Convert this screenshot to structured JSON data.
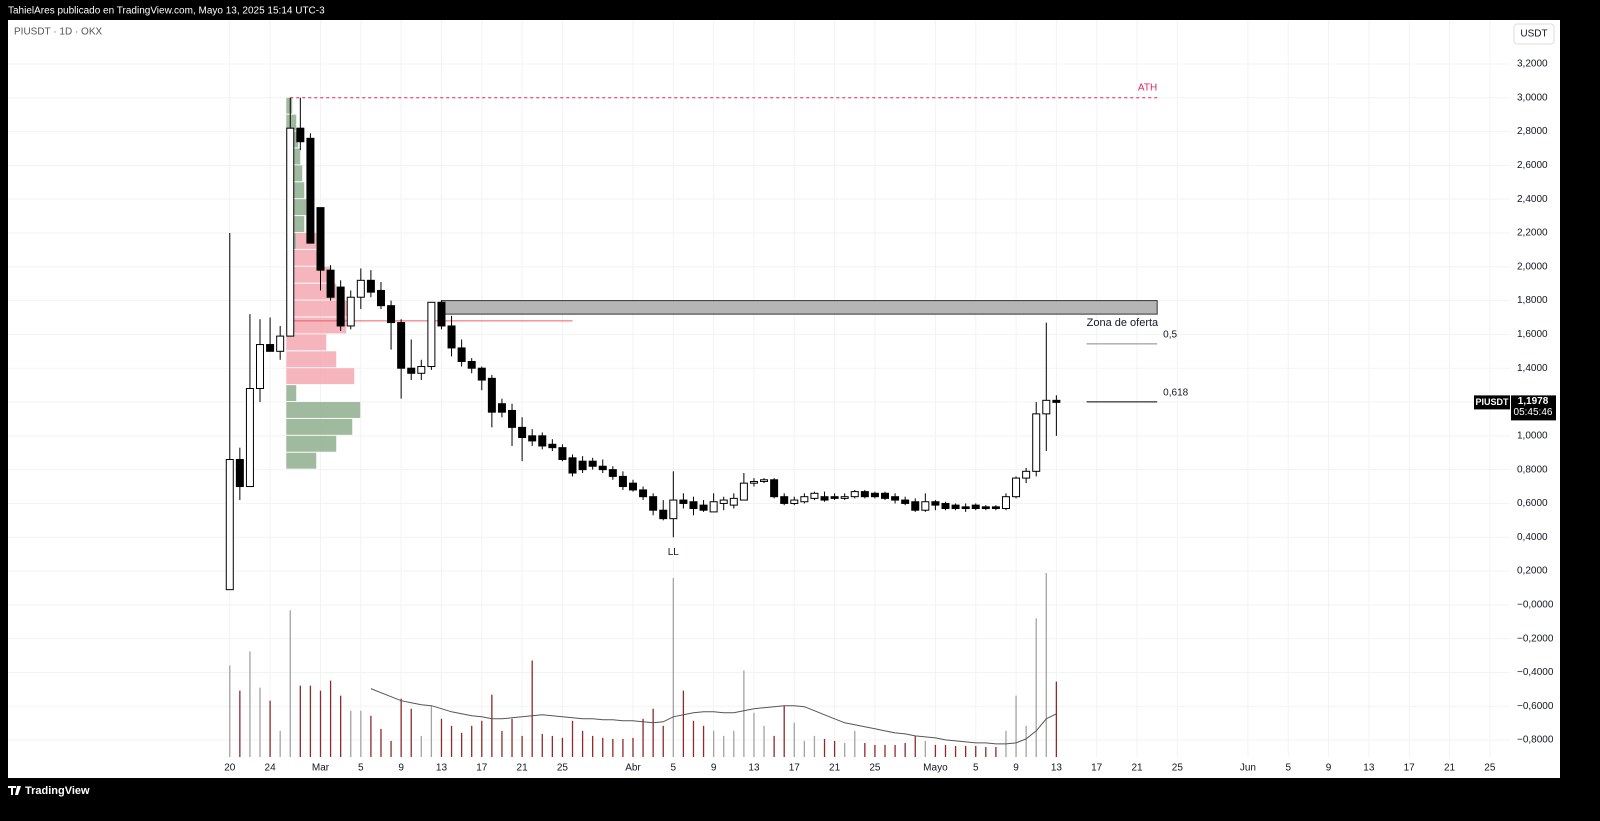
{
  "header": "TahielAres publicado en TradingView.com, Mayo 13, 2025 15:14 UTC-3",
  "footer": "TradingView",
  "chart_data": {
    "type": "candlestick",
    "title": "PIUSDT · 1D · OKX",
    "currency": "USDT",
    "x": [
      "2025-02-20",
      "2025-02-21",
      "2025-02-22",
      "2025-02-23",
      "2025-02-24",
      "2025-02-25",
      "2025-02-26",
      "2025-02-27",
      "2025-02-28",
      "2025-03-01",
      "2025-03-02",
      "2025-03-03",
      "2025-03-04",
      "2025-03-05",
      "2025-03-06",
      "2025-03-07",
      "2025-03-08",
      "2025-03-09",
      "2025-03-10",
      "2025-03-11",
      "2025-03-12",
      "2025-03-13",
      "2025-03-14",
      "2025-03-15",
      "2025-03-16",
      "2025-03-17",
      "2025-03-18",
      "2025-03-19",
      "2025-03-20",
      "2025-03-21",
      "2025-03-22",
      "2025-03-23",
      "2025-03-24",
      "2025-03-25",
      "2025-03-26",
      "2025-03-27",
      "2025-03-28",
      "2025-03-29",
      "2025-03-30",
      "2025-03-31",
      "2025-04-01",
      "2025-04-02",
      "2025-04-03",
      "2025-04-04",
      "2025-04-05",
      "2025-04-06",
      "2025-04-07",
      "2025-04-08",
      "2025-04-09",
      "2025-04-10",
      "2025-04-11",
      "2025-04-12",
      "2025-04-13",
      "2025-04-14",
      "2025-04-15",
      "2025-04-16",
      "2025-04-17",
      "2025-04-18",
      "2025-04-19",
      "2025-04-20",
      "2025-04-21",
      "2025-04-22",
      "2025-04-23",
      "2025-04-24",
      "2025-04-25",
      "2025-04-26",
      "2025-04-27",
      "2025-04-28",
      "2025-04-29",
      "2025-04-30",
      "2025-05-01",
      "2025-05-02",
      "2025-05-03",
      "2025-05-04",
      "2025-05-05",
      "2025-05-06",
      "2025-05-07",
      "2025-05-08",
      "2025-05-09",
      "2025-05-10",
      "2025-05-11",
      "2025-05-12",
      "2025-05-13"
    ],
    "open": [
      0.09,
      0.86,
      0.7,
      1.28,
      1.54,
      1.5,
      1.59,
      2.82,
      2.76,
      2.35,
      1.98,
      1.88,
      1.65,
      1.82,
      1.92,
      1.86,
      1.77,
      1.67,
      1.4,
      1.37,
      1.41,
      1.79,
      1.65,
      1.52,
      1.44,
      1.4,
      1.34,
      1.19,
      1.15,
      1.05,
      1.0,
      1.0,
      0.95,
      0.93,
      0.87,
      0.85,
      0.85,
      0.82,
      0.8,
      0.76,
      0.72,
      0.68,
      0.64,
      0.56,
      0.51,
      0.62,
      0.61,
      0.59,
      0.55,
      0.6,
      0.59,
      0.62,
      0.72,
      0.73,
      0.74,
      0.64,
      0.6,
      0.61,
      0.63,
      0.64,
      0.64,
      0.63,
      0.64,
      0.67,
      0.66,
      0.66,
      0.64,
      0.62,
      0.61,
      0.56,
      0.61,
      0.6,
      0.59,
      0.58,
      0.59,
      0.58,
      0.58,
      0.57,
      0.64,
      0.75,
      0.79,
      1.13,
      1.21
    ],
    "high": [
      2.2,
      0.93,
      1.72,
      1.69,
      1.7,
      1.65,
      3.0,
      3.0,
      2.79,
      2.35,
      2.01,
      1.92,
      1.86,
      1.99,
      1.98,
      1.91,
      1.8,
      1.69,
      1.57,
      1.45,
      1.79,
      1.8,
      1.71,
      1.57,
      1.46,
      1.41,
      1.36,
      1.22,
      1.19,
      1.11,
      1.04,
      1.02,
      0.98,
      0.95,
      0.89,
      0.88,
      0.87,
      0.86,
      0.82,
      0.79,
      0.74,
      0.7,
      0.66,
      0.62,
      0.79,
      0.66,
      0.64,
      0.62,
      0.66,
      0.64,
      0.66,
      0.78,
      0.75,
      0.75,
      0.75,
      0.66,
      0.64,
      0.66,
      0.67,
      0.67,
      0.66,
      0.66,
      0.68,
      0.68,
      0.67,
      0.67,
      0.66,
      0.64,
      0.63,
      0.66,
      0.62,
      0.61,
      0.6,
      0.6,
      0.6,
      0.59,
      0.59,
      0.66,
      0.76,
      0.81,
      1.2,
      1.67,
      1.24
    ],
    "low": [
      0.09,
      0.62,
      0.7,
      1.2,
      1.5,
      1.45,
      1.59,
      2.69,
      2.14,
      1.86,
      1.8,
      1.62,
      1.63,
      1.75,
      1.82,
      1.75,
      1.51,
      1.22,
      1.33,
      1.33,
      1.39,
      1.63,
      1.47,
      1.41,
      1.37,
      1.27,
      1.05,
      1.11,
      0.94,
      0.85,
      0.94,
      0.92,
      0.91,
      0.85,
      0.76,
      0.78,
      0.8,
      0.78,
      0.74,
      0.68,
      0.67,
      0.62,
      0.53,
      0.5,
      0.4,
      0.57,
      0.53,
      0.55,
      0.55,
      0.56,
      0.57,
      0.62,
      0.7,
      0.72,
      0.63,
      0.59,
      0.59,
      0.6,
      0.62,
      0.61,
      0.62,
      0.62,
      0.63,
      0.63,
      0.63,
      0.62,
      0.6,
      0.59,
      0.55,
      0.55,
      0.56,
      0.56,
      0.56,
      0.55,
      0.56,
      0.56,
      0.56,
      0.56,
      0.63,
      0.72,
      0.76,
      0.91,
      1.0
    ],
    "close": [
      0.86,
      0.7,
      1.28,
      1.54,
      1.5,
      1.59,
      2.82,
      2.74,
      2.14,
      1.98,
      1.82,
      1.65,
      1.82,
      1.92,
      1.85,
      1.77,
      1.67,
      1.4,
      1.37,
      1.41,
      1.79,
      1.65,
      1.52,
      1.44,
      1.4,
      1.33,
      1.14,
      1.14,
      1.05,
      0.99,
      0.97,
      0.94,
      0.93,
      0.86,
      0.78,
      0.8,
      0.82,
      0.8,
      0.76,
      0.7,
      0.68,
      0.64,
      0.56,
      0.51,
      0.62,
      0.6,
      0.57,
      0.56,
      0.61,
      0.62,
      0.63,
      0.72,
      0.73,
      0.74,
      0.64,
      0.6,
      0.62,
      0.64,
      0.66,
      0.62,
      0.63,
      0.64,
      0.67,
      0.64,
      0.64,
      0.63,
      0.62,
      0.6,
      0.56,
      0.61,
      0.59,
      0.57,
      0.57,
      0.57,
      0.57,
      0.57,
      0.57,
      0.64,
      0.75,
      0.79,
      1.13,
      1.21,
      1.1978
    ],
    "volume": [
      91,
      66,
      105,
      69,
      56,
      26,
      146,
      71,
      71,
      66,
      76,
      61,
      46,
      46,
      41,
      28,
      16,
      58,
      48,
      21,
      51,
      38,
      31,
      24,
      31,
      36,
      62,
      26,
      38,
      21,
      96,
      23,
      21,
      19,
      36,
      26,
      21,
      19,
      18,
      18,
      19,
      38,
      48,
      31,
      178,
      66,
      36,
      31,
      26,
      21,
      26,
      86,
      44,
      31,
      21,
      51,
      34,
      16,
      21,
      18,
      16,
      14,
      26,
      14,
      12,
      12,
      12,
      14,
      21,
      16,
      12,
      12,
      11,
      11,
      11,
      10,
      10,
      26,
      61,
      31,
      138,
      183,
      75
    ],
    "volume_ma": [
      null,
      null,
      null,
      null,
      null,
      null,
      null,
      null,
      null,
      null,
      null,
      null,
      null,
      null,
      68,
      64,
      60,
      56,
      54,
      52,
      51,
      48,
      45,
      43,
      41,
      40,
      38,
      38,
      39,
      40,
      41,
      42,
      41,
      40,
      39,
      38,
      38,
      37,
      37,
      36,
      36,
      35,
      34,
      35,
      40,
      42,
      44,
      45,
      45,
      44,
      44,
      46,
      48,
      49,
      50,
      51,
      51,
      50,
      46,
      42,
      38,
      34,
      32,
      30,
      28,
      26,
      24,
      23,
      21,
      20,
      19,
      17,
      16,
      15,
      14,
      14,
      13,
      13,
      14,
      18,
      26,
      38,
      43
    ],
    "up_color": "#ffffff",
    "down_color": "#000000",
    "volume_up_color": "#a3a3a3",
    "volume_down_color": "#8d2a2a",
    "volume_ma_color": "#555555",
    "volume_profile": {
      "from": "2025-02-26",
      "bins": [
        0.8,
        0.9,
        1.0,
        1.1,
        1.2,
        1.3,
        1.4,
        1.5,
        1.6,
        1.7,
        1.8,
        1.9,
        2.0,
        2.1,
        2.2,
        2.3,
        2.4,
        2.5,
        2.6,
        2.7,
        2.8,
        2.9,
        3.0
      ],
      "up": [
        30,
        50,
        66,
        74,
        10,
        0,
        0,
        0,
        0,
        0,
        0,
        4,
        5,
        10,
        18,
        20,
        18,
        16,
        14,
        12,
        10,
        6
      ],
      "down": [
        0,
        0,
        0,
        0,
        0,
        68,
        50,
        40,
        60,
        66,
        50,
        40,
        30,
        20,
        0,
        0,
        0,
        0,
        0,
        0,
        0,
        0
      ],
      "up_color": "#8fae8f",
      "down_color": "#f4a3ab",
      "poc": 1.68,
      "poc_to": "2025-03-26",
      "poc_color": "#f05a66"
    },
    "ath": {
      "label": "ATH",
      "value": 3.0,
      "from": "2025-02-26",
      "to": "2025-05-23",
      "color": "#e0245e"
    },
    "supply_zone": {
      "label": "Zona de oferta",
      "low": 1.72,
      "high": 1.8,
      "from": "2025-03-13",
      "to": "2025-05-23",
      "color": "#b5b5b5"
    },
    "fib_levels": [
      {
        "label": "0,5",
        "value": 1.544
      },
      {
        "label": "0,618",
        "value": 1.201
      }
    ],
    "fib_from": "2025-05-16",
    "fib_to": "2025-05-23",
    "low_label": {
      "text": "LL",
      "at": "2025-04-05"
    },
    "last": {
      "symbol": "PIUSDT",
      "price": "1,1978",
      "countdown": "05:45:46"
    },
    "xlim": [
      "2025-01-29",
      "2025-06-27"
    ],
    "xticks": [
      {
        "value": "2025-02-20",
        "label": "20"
      },
      {
        "value": "2025-02-24",
        "label": "24"
      },
      {
        "value": "2025-03-01",
        "label": "Mar"
      },
      {
        "value": "2025-03-05",
        "label": "5"
      },
      {
        "value": "2025-03-09",
        "label": "9"
      },
      {
        "value": "2025-03-13",
        "label": "13"
      },
      {
        "value": "2025-03-17",
        "label": "17"
      },
      {
        "value": "2025-03-21",
        "label": "21"
      },
      {
        "value": "2025-03-25",
        "label": "25"
      },
      {
        "value": "2025-04-01",
        "label": "Abr"
      },
      {
        "value": "2025-04-05",
        "label": "5"
      },
      {
        "value": "2025-04-09",
        "label": "9"
      },
      {
        "value": "2025-04-13",
        "label": "13"
      },
      {
        "value": "2025-04-17",
        "label": "17"
      },
      {
        "value": "2025-04-21",
        "label": "21"
      },
      {
        "value": "2025-04-25",
        "label": "25"
      },
      {
        "value": "2025-05-01",
        "label": "Mayo"
      },
      {
        "value": "2025-05-05",
        "label": "5"
      },
      {
        "value": "2025-05-09",
        "label": "9"
      },
      {
        "value": "2025-05-13",
        "label": "13"
      },
      {
        "value": "2025-05-17",
        "label": "17"
      },
      {
        "value": "2025-05-21",
        "label": "21"
      },
      {
        "value": "2025-05-25",
        "label": "25"
      },
      {
        "value": "2025-06-01",
        "label": "Jun"
      },
      {
        "value": "2025-06-05",
        "label": "5"
      },
      {
        "value": "2025-06-09",
        "label": "9"
      },
      {
        "value": "2025-06-13",
        "label": "13"
      },
      {
        "value": "2025-06-17",
        "label": "17"
      },
      {
        "value": "2025-06-21",
        "label": "21"
      },
      {
        "value": "2025-06-25",
        "label": "25"
      }
    ],
    "ylim": [
      -0.9,
      3.46
    ],
    "yticks": [
      {
        "value": 3.2,
        "label": "3,2000"
      },
      {
        "value": 3.0,
        "label": "3,0000"
      },
      {
        "value": 2.8,
        "label": "2,8000"
      },
      {
        "value": 2.6,
        "label": "2,6000"
      },
      {
        "value": 2.4,
        "label": "2,4000"
      },
      {
        "value": 2.2,
        "label": "2,2000"
      },
      {
        "value": 2.0,
        "label": "2,0000"
      },
      {
        "value": 1.8,
        "label": "1,8000"
      },
      {
        "value": 1.6,
        "label": "1,6000"
      },
      {
        "value": 1.4,
        "label": "1,4000"
      },
      {
        "value": 1.2,
        "label": "1,2000"
      },
      {
        "value": 1.0,
        "label": "1,0000"
      },
      {
        "value": 0.8,
        "label": "0,8000"
      },
      {
        "value": 0.6,
        "label": "0,6000"
      },
      {
        "value": 0.4,
        "label": "0,4000"
      },
      {
        "value": 0.2,
        "label": "0,2000"
      },
      {
        "value": 0,
        "label": "−0,0000"
      },
      {
        "value": -0.2,
        "label": "−0,2000"
      },
      {
        "value": -0.4,
        "label": "−0,4000"
      },
      {
        "value": -0.6,
        "label": "−0,6000"
      },
      {
        "value": -0.8,
        "label": "−0,8000"
      }
    ],
    "grid": true
  }
}
